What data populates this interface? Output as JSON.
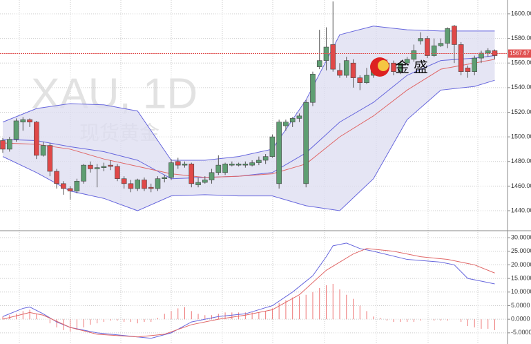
{
  "chart_data": [
    {
      "type": "candlestick",
      "watermark": "XAU, 1D",
      "subtitle": "现货黄金",
      "logo": "金 盛",
      "up_color": "#5e9e72",
      "down_color": "#e04848",
      "ohlc": [
        [
          1497,
          1499,
          1487,
          1490
        ],
        [
          1490,
          1500,
          1488,
          1498
        ],
        [
          1498,
          1515,
          1496,
          1513
        ],
        [
          1512,
          1516,
          1505,
          1514
        ],
        [
          1514,
          1515,
          1508,
          1512
        ],
        [
          1512,
          1513,
          1482,
          1485
        ],
        [
          1485,
          1496,
          1484,
          1493
        ],
        [
          1493,
          1495,
          1468,
          1472
        ],
        [
          1472,
          1474,
          1458,
          1462
        ],
        [
          1462,
          1464,
          1453,
          1458
        ],
        [
          1458,
          1460,
          1449,
          1456
        ],
        [
          1456,
          1466,
          1454,
          1464
        ],
        [
          1464,
          1478,
          1462,
          1477
        ],
        [
          1477,
          1480,
          1471,
          1474
        ],
        [
          1474,
          1478,
          1459,
          1475
        ],
        [
          1475,
          1479,
          1472,
          1476
        ],
        [
          1477,
          1481,
          1473,
          1476
        ],
        [
          1476,
          1478,
          1464,
          1466
        ],
        [
          1466,
          1468,
          1458,
          1462
        ],
        [
          1462,
          1465,
          1455,
          1458
        ],
        [
          1458,
          1466,
          1456,
          1465
        ],
        [
          1465,
          1467,
          1456,
          1458
        ],
        [
          1459,
          1462,
          1455,
          1458
        ],
        [
          1458,
          1468,
          1456,
          1466
        ],
        [
          1466,
          1469,
          1463,
          1467
        ],
        [
          1467,
          1482,
          1465,
          1479
        ],
        [
          1480,
          1483,
          1474,
          1477
        ],
        [
          1477,
          1480,
          1475,
          1478
        ],
        [
          1478,
          1479,
          1459,
          1462
        ],
        [
          1461,
          1467,
          1459,
          1463
        ],
        [
          1463,
          1468,
          1462,
          1465
        ],
        [
          1465,
          1474,
          1462,
          1471
        ],
        [
          1471,
          1485,
          1469,
          1477
        ],
        [
          1471,
          1479,
          1469,
          1478
        ],
        [
          1477,
          1480,
          1476,
          1478
        ],
        [
          1477,
          1479,
          1476,
          1478
        ],
        [
          1477,
          1480,
          1475,
          1478
        ],
        [
          1477,
          1481,
          1476,
          1479
        ],
        [
          1479,
          1484,
          1477,
          1481
        ],
        [
          1481,
          1486,
          1478,
          1484
        ],
        [
          1484,
          1502,
          1483,
          1500
        ],
        [
          1462,
          1514,
          1458,
          1512
        ],
        [
          1509,
          1514,
          1505,
          1512
        ],
        [
          1512,
          1516,
          1508,
          1515
        ],
        [
          1515,
          1519,
          1512,
          1517
        ],
        [
          1462,
          1530,
          1459,
          1528
        ],
        [
          1528,
          1553,
          1525,
          1551
        ],
        [
          1557,
          1587,
          1555,
          1562
        ],
        [
          1562,
          1589,
          1554,
          1573
        ],
        [
          1575,
          1610,
          1553,
          1555
        ],
        [
          1554,
          1560,
          1548,
          1550
        ],
        [
          1550,
          1565,
          1548,
          1562
        ],
        [
          1560,
          1563,
          1540,
          1548
        ],
        [
          1548,
          1550,
          1538,
          1544
        ],
        [
          1544,
          1556,
          1543,
          1550
        ],
        [
          1550,
          1558,
          1548,
          1556
        ],
        [
          1552,
          1562,
          1550,
          1558
        ],
        [
          1556,
          1563,
          1554,
          1560
        ],
        [
          1560,
          1562,
          1550,
          1553
        ],
        [
          1553,
          1562,
          1551,
          1560
        ],
        [
          1560,
          1565,
          1558,
          1563
        ],
        [
          1563,
          1575,
          1561,
          1570
        ],
        [
          1578,
          1585,
          1575,
          1580
        ],
        [
          1580,
          1582,
          1564,
          1566
        ],
        [
          1566,
          1580,
          1565,
          1574
        ],
        [
          1574,
          1580,
          1573,
          1576
        ],
        [
          1576,
          1589,
          1572,
          1588
        ],
        [
          1590,
          1591,
          1560,
          1575
        ],
        [
          1575,
          1577,
          1550,
          1553
        ],
        [
          1556,
          1558,
          1548,
          1553
        ],
        [
          1553,
          1566,
          1550,
          1564
        ],
        [
          1564,
          1570,
          1560,
          1568
        ],
        [
          1568,
          1572,
          1565,
          1570
        ],
        [
          1570,
          1571,
          1563,
          1566
        ]
      ],
      "band_fill": "#dcdcf0",
      "overlays": [
        {
          "color": "#6666dd",
          "x": [
            0,
            5,
            10,
            15,
            20,
            25,
            30,
            35,
            40,
            45,
            50,
            55,
            60,
            65,
            70,
            73
          ],
          "values": [
            1512,
            1523,
            1527,
            1526,
            1521,
            1481,
            1481,
            1484,
            1490,
            1530,
            1583,
            1590,
            1587,
            1586,
            1586,
            1586
          ]
        },
        {
          "color": "#6666dd",
          "x": [
            0,
            5,
            10,
            15,
            20,
            25,
            30,
            35,
            40,
            45,
            50,
            55,
            60,
            65,
            70,
            73
          ],
          "values": [
            1484,
            1471,
            1456,
            1450,
            1440,
            1452,
            1453,
            1452,
            1452,
            1444,
            1440,
            1466,
            1514,
            1538,
            1541,
            1546
          ]
        },
        {
          "color": "#6666dd",
          "x": [
            0,
            5,
            10,
            15,
            20,
            25,
            30,
            35,
            40,
            45,
            50,
            55,
            60,
            65,
            70,
            73
          ],
          "values": [
            1498,
            1497,
            1492,
            1488,
            1481,
            1466,
            1467,
            1468,
            1471,
            1487,
            1512,
            1528,
            1550,
            1562,
            1564,
            1566
          ]
        },
        {
          "color": "#e06666",
          "x": [
            0,
            5,
            10,
            15,
            20,
            25,
            30,
            35,
            40,
            45,
            50,
            55,
            60,
            65,
            70,
            73
          ],
          "values": [
            1495,
            1494,
            1490,
            1482,
            1476,
            1470,
            1467,
            1468,
            1470,
            1478,
            1500,
            1517,
            1538,
            1555,
            1560,
            1563
          ]
        }
      ],
      "last_price": 1567.67,
      "last_price_color": "#e05050",
      "ylim": [
        1424.3,
        1611.2
      ],
      "yticks": [
        {
          "value": 1440,
          "label": "1440.00"
        },
        {
          "value": 1460,
          "label": "1460.00"
        },
        {
          "value": 1480,
          "label": "1480.00"
        },
        {
          "value": 1500,
          "label": "1500.00"
        },
        {
          "value": 1520,
          "label": "1520.00"
        },
        {
          "value": 1540,
          "label": "1540.00"
        },
        {
          "value": 1560,
          "label": "1560.00"
        },
        {
          "value": 1580,
          "label": "1580.00"
        },
        {
          "value": 1600,
          "label": "1600.00"
        }
      ],
      "grid": true
    },
    {
      "type": "macd",
      "hist_color": "#ee7777",
      "histogram": [
        1,
        1.5,
        2,
        3,
        3.5,
        2,
        0,
        -1.5,
        -3,
        -4,
        -4.5,
        -4,
        -3,
        -2,
        -1.5,
        -1,
        -0.5,
        -0.5,
        -1,
        -1,
        -1.5,
        -1,
        -1,
        0.5,
        2,
        3,
        4,
        4.5,
        3,
        2,
        1.5,
        1.5,
        2,
        2.5,
        2.5,
        2.5,
        2.5,
        2.5,
        2.5,
        3,
        4,
        6,
        7,
        8,
        8.5,
        9,
        10,
        11.5,
        12.5,
        13,
        11,
        9,
        7.5,
        5,
        3,
        1,
        0.5,
        -0.5,
        -1,
        -1,
        -1,
        -1,
        -0.5,
        0,
        -0.5,
        -0.5,
        -0.5,
        0,
        -1,
        -2.5,
        -3,
        -3.5,
        -3.5,
        -4
      ],
      "lines": [
        {
          "color": "#6666dd",
          "x": [
            0,
            3,
            4,
            6,
            8,
            10,
            14,
            18,
            22,
            25,
            28,
            32,
            36,
            40,
            43,
            46,
            48,
            49,
            51,
            53,
            55,
            60,
            65,
            67,
            69,
            71,
            73
          ],
          "values": [
            1,
            4,
            4.5,
            2,
            -1,
            -3,
            -5,
            -6,
            -7,
            -5,
            -1,
            1,
            2,
            5,
            10,
            16,
            23,
            27,
            28,
            26,
            25,
            22,
            21,
            20,
            15,
            14,
            13
          ]
        },
        {
          "color": "#e06666",
          "x": [
            0,
            4,
            6,
            10,
            14,
            20,
            24,
            28,
            32,
            36,
            40,
            44,
            48,
            52,
            54,
            58,
            62,
            66,
            68,
            70,
            73
          ],
          "values": [
            0,
            2.5,
            1.5,
            -3,
            -5.5,
            -6.5,
            -5.5,
            -2,
            0,
            1.5,
            3.5,
            9,
            18,
            24,
            26,
            25,
            23,
            22,
            21,
            20,
            17
          ]
        }
      ],
      "ylim": [
        -9.1,
        32.3
      ],
      "yticks": [
        {
          "value": -5,
          "label": "-5.0000"
        },
        {
          "value": 0,
          "label": "0.0000"
        },
        {
          "value": 5,
          "label": "5.0000"
        },
        {
          "value": 10,
          "label": "10.0000"
        },
        {
          "value": 15,
          "label": "15.0000"
        },
        {
          "value": 20,
          "label": "20.0000"
        },
        {
          "value": 25,
          "label": "25.0000"
        },
        {
          "value": 30,
          "label": "30.0000"
        }
      ],
      "grid": true
    }
  ]
}
